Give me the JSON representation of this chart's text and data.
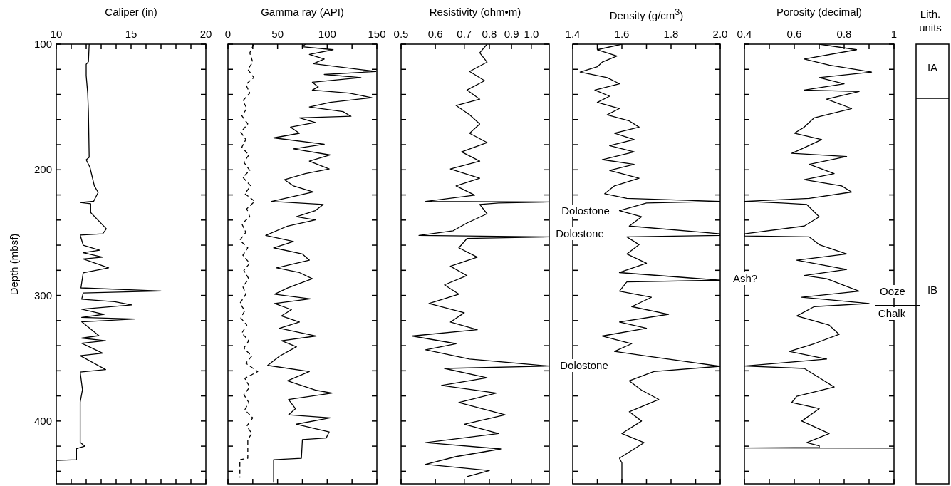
{
  "chart_data": [
    {
      "type": "line",
      "orientation": "horizontal",
      "xlabel": "Caliper (in)",
      "ylabel": "Depth (mbsf)",
      "xlim": [
        10,
        20
      ],
      "ylim": [
        450,
        100
      ],
      "xticks": [
        10,
        {
          "value": 11,
          "label": null
        },
        {
          "value": 12,
          "label": null
        },
        {
          "value": 13,
          "label": null
        },
        {
          "value": 14,
          "label": null
        },
        15,
        {
          "value": 16,
          "label": null
        },
        {
          "value": 17,
          "label": null
        },
        {
          "value": 18,
          "label": null
        },
        {
          "value": 19,
          "label": null
        },
        20
      ],
      "yticks": [
        100,
        {
          "value": 120,
          "label": null
        },
        {
          "value": 140,
          "label": null
        },
        {
          "value": 160,
          "label": null
        },
        {
          "value": 180,
          "label": null
        },
        200,
        {
          "value": 220,
          "label": null
        },
        {
          "value": 240,
          "label": null
        },
        {
          "value": 260,
          "label": null
        },
        {
          "value": 280,
          "label": null
        },
        300,
        {
          "value": 320,
          "label": null
        },
        {
          "value": 340,
          "label": null
        },
        {
          "value": 360,
          "label": null
        },
        {
          "value": 380,
          "label": null
        },
        400,
        {
          "value": 420,
          "label": null
        },
        {
          "value": 440,
          "label": null
        }
      ],
      "series": [
        {
          "color": "#000000",
          "x": [
            100,
            114,
            116,
            125,
            139,
            154,
            190,
            192,
            198,
            213,
            218,
            225,
            226,
            227,
            234,
            247,
            251,
            252,
            260,
            264,
            266,
            269.5,
            271,
            278,
            282,
            294,
            296.5,
            298,
            303,
            305,
            307.6,
            311,
            315,
            317.5,
            318.7,
            321,
            332,
            334,
            336,
            338,
            346,
            348,
            359,
            361,
            375,
            385,
            417,
            420,
            422,
            430.8,
            431.3,
            449
          ],
          "values": [
            12.2,
            12.15,
            12.0,
            12.0,
            12.1,
            12.15,
            12.2,
            12.0,
            12.25,
            12.55,
            12.8,
            12.5,
            11.6,
            12.3,
            12.3,
            13.35,
            13.1,
            11.6,
            11.8,
            12.9,
            11.8,
            13.1,
            11.8,
            13.5,
            11.8,
            11.65,
            17.0,
            11.8,
            11.7,
            13.9,
            15.05,
            11.7,
            13.2,
            11.7,
            15.25,
            11.7,
            12.85,
            11.7,
            13.3,
            11.7,
            13.1,
            11.6,
            13.3,
            11.6,
            11.75,
            11.6,
            11.6,
            11.9,
            11.35,
            11.35,
            10.0,
            10.0
          ]
        }
      ]
    },
    {
      "type": "line",
      "orientation": "horizontal",
      "xlabel": "Gamma ray (API)",
      "xlim": [
        0,
        150
      ],
      "ylim": [
        450,
        100
      ],
      "tick_labels": "x",
      "xticks": [
        0,
        {
          "value": 25,
          "label": null
        },
        50,
        {
          "value": 75,
          "label": null
        },
        100,
        {
          "value": 125,
          "label": null
        },
        150
      ],
      "yticks": [
        100,
        {
          "value": 120,
          "label": null
        },
        {
          "value": 140,
          "label": null
        },
        {
          "value": 160,
          "label": null
        },
        {
          "value": 180,
          "label": null
        },
        200,
        {
          "value": 220,
          "label": null
        },
        {
          "value": 240,
          "label": null
        },
        {
          "value": 260,
          "label": null
        },
        {
          "value": 280,
          "label": null
        },
        300,
        {
          "value": 320,
          "label": null
        },
        {
          "value": 340,
          "label": null
        },
        {
          "value": 360,
          "label": null
        },
        {
          "value": 380,
          "label": null
        },
        400,
        {
          "value": 420,
          "label": null
        },
        {
          "value": 440,
          "label": null
        }
      ],
      "series": [
        {
          "color": "#000000",
          "x": [
            100,
            102,
            104.4,
            108.1,
            111.8,
            115.5,
            121.7,
            124.1,
            126.6,
            130.3,
            134,
            136.5,
            138.9,
            142.6,
            146.3,
            150,
            153.7,
            157.4,
            158.6,
            162.3,
            166,
            170.9,
            174.6,
            179.6,
            183.3,
            188.2,
            193.1,
            199.3,
            203,
            207.9,
            212.8,
            217.7,
            225.1,
            227.6,
            232.5,
            237.4,
            239.9,
            244.8,
            252.2,
            257.1,
            262.1,
            267,
            271.9,
            278.1,
            281.8,
            286.7,
            294.1,
            299,
            302.7,
            306.4,
            311.3,
            316.3,
            321.2,
            326.1,
            332.3,
            336,
            340.9,
            348.3,
            355.7,
            360.6,
            368,
            375.4,
            377.8,
            382.8,
            390.1,
            395.1,
            397.5,
            402.5,
            408.6,
            413.5,
            414.8,
            429.6,
            430.8,
            449
          ],
          "values": [
            78,
            75,
            106,
            82,
            97,
            86,
            149,
            97,
            134,
            85,
            91,
            85,
            122,
            145,
            103,
            82,
            116,
            124,
            72,
            88,
            63,
            72,
            46,
            97,
            66,
            103,
            82,
            102,
            78,
            57,
            66,
            86,
            44,
            96,
            88,
            69,
            88,
            60,
            38,
            66,
            46,
            75,
            82,
            49,
            72,
            85,
            60,
            47,
            83,
            47,
            64,
            54,
            72,
            52,
            89,
            54,
            69,
            52,
            40,
            82,
            60,
            88,
            105,
            61,
            68,
            61,
            103,
            69,
            102,
            99,
            75,
            74,
            46,
            46
          ]
        },
        {
          "color": "#000000",
          "line_style": "dashed",
          "x": [
            100,
            107,
            114.3,
            120,
            126.6,
            132,
            138.9,
            145,
            151.2,
            157,
            163.5,
            170,
            175.9,
            182,
            188.2,
            194,
            200.5,
            206,
            212.8,
            219,
            225.1,
            231,
            237.4,
            243,
            249.8,
            256,
            262.1,
            268,
            274.4,
            280,
            286.7,
            293,
            299,
            306.4,
            312,
            318,
            323.6,
            330,
            336,
            342,
            348.3,
            354,
            360.6,
            366,
            372.9,
            379,
            385.2,
            391,
            397.5,
            404,
            409.9,
            414.8,
            429.6,
            430.8,
            445
          ],
          "values": [
            26,
            22,
            25,
            20,
            26,
            18,
            22,
            15,
            19,
            14,
            20,
            13,
            18,
            14,
            21,
            16,
            22,
            15,
            23,
            17,
            27,
            19,
            22,
            14,
            18,
            12,
            20,
            15,
            22,
            16,
            21,
            15,
            18,
            12,
            17,
            13,
            19,
            14,
            21,
            16,
            24,
            18,
            30,
            17,
            22,
            16,
            21,
            17,
            25,
            19,
            24,
            20,
            20,
            12,
            12
          ]
        }
      ]
    },
    {
      "type": "line",
      "orientation": "horizontal",
      "xlabel": "Resistivity (ohm•m)",
      "xlim": [
        0.5,
        1.1
      ],
      "ylim": [
        450,
        100
      ],
      "log": "x",
      "tick_labels": "x",
      "xticks": [
        0.5,
        0.6,
        0.7,
        0.8,
        0.9,
        {
          "value": 1,
          "label": "1.0"
        }
      ],
      "yticks": [
        100,
        {
          "value": 120,
          "label": null
        },
        {
          "value": 140,
          "label": null
        },
        {
          "value": 160,
          "label": null
        },
        {
          "value": 180,
          "label": null
        },
        200,
        {
          "value": 220,
          "label": null
        },
        {
          "value": 240,
          "label": null
        },
        {
          "value": 260,
          "label": null
        },
        {
          "value": 280,
          "label": null
        },
        300,
        {
          "value": 320,
          "label": null
        },
        {
          "value": 340,
          "label": null
        },
        {
          "value": 360,
          "label": null
        },
        {
          "value": 380,
          "label": null
        },
        400,
        {
          "value": 420,
          "label": null
        },
        {
          "value": 440,
          "label": null
        }
      ],
      "series": [
        {
          "color": "#000000",
          "x": [
            100,
            106.9,
            114.3,
            121.7,
            129.1,
            136.5,
            143.8,
            148.8,
            156.2,
            163.5,
            170.9,
            178.3,
            185.7,
            193.1,
            199.3,
            206.7,
            212.8,
            220.2,
            225.1,
            225.6,
            226.4,
            227.6,
            235,
            242.4,
            248.5,
            252.2,
            253.4,
            254.7,
            262.1,
            269.5,
            276.8,
            284.2,
            291.6,
            299,
            306.4,
            313.8,
            321.2,
            327.3,
            332.3,
            338.4,
            343.3,
            350.7,
            356.2,
            358.1,
            365.5,
            371.7,
            377.8,
            385.2,
            395.1,
            402.5,
            409.9,
            417.2,
            422.2,
            428.3,
            434.5,
            439.4,
            444.3
          ],
          "values": [
            0.79,
            0.76,
            0.79,
            0.72,
            0.78,
            0.71,
            0.76,
            0.67,
            0.72,
            0.76,
            0.72,
            0.79,
            0.69,
            0.76,
            0.65,
            0.76,
            0.67,
            0.74,
            0.57,
            1.1,
            0.84,
            0.76,
            0.79,
            0.71,
            0.66,
            0.55,
            1.1,
            0.71,
            0.68,
            0.75,
            0.65,
            0.71,
            0.63,
            0.68,
            0.58,
            0.7,
            0.65,
            0.75,
            0.53,
            0.67,
            0.57,
            0.72,
            1.1,
            0.63,
            0.79,
            0.62,
            0.83,
            0.68,
            0.87,
            0.7,
            0.84,
            0.57,
            0.85,
            0.67,
            0.57,
            0.8,
            0.71
          ]
        }
      ]
    },
    {
      "type": "line",
      "orientation": "horizontal",
      "xlabel": "Density (g/cm$^{3}$)",
      "xlim": [
        1.4,
        2.0
      ],
      "ylim": [
        450,
        100
      ],
      "tick_labels": "x",
      "xticks": [
        1.4,
        {
          "value": 1.5,
          "label": null
        },
        1.6,
        {
          "value": 1.7,
          "label": null
        },
        1.8,
        {
          "value": 1.9,
          "label": null
        },
        {
          "value": 2,
          "label": "2.0"
        }
      ],
      "yticks": [
        100,
        {
          "value": 120,
          "label": null
        },
        {
          "value": 140,
          "label": null
        },
        {
          "value": 160,
          "label": null
        },
        {
          "value": 180,
          "label": null
        },
        200,
        {
          "value": 220,
          "label": null
        },
        {
          "value": 240,
          "label": null
        },
        {
          "value": 260,
          "label": null
        },
        {
          "value": 280,
          "label": null
        },
        300,
        {
          "value": 320,
          "label": null
        },
        {
          "value": 340,
          "label": null
        },
        {
          "value": 360,
          "label": null
        },
        {
          "value": 380,
          "label": null
        },
        400,
        {
          "value": 420,
          "label": null
        },
        {
          "value": 440,
          "label": null
        }
      ],
      "annotations": [
        "Dolostone",
        "Dolostone",
        "Dolostone"
      ],
      "series": [
        {
          "color": "#000000",
          "x": [
            100,
            104.4,
            109.4,
            114.3,
            118,
            122.2,
            126.6,
            131.5,
            136.5,
            141.4,
            146.3,
            151.2,
            156.2,
            161.1,
            166,
            170.9,
            175.9,
            180.8,
            185.7,
            191.9,
            195.6,
            200.5,
            206.7,
            212.8,
            219,
            222.7,
            225.1,
            226.4,
            232.5,
            237.4,
            244.8,
            251,
            252.2,
            253.4,
            259.6,
            267,
            274.4,
            281.8,
            287.9,
            289.2,
            296.6,
            301.5,
            308.9,
            315,
            321.2,
            326.1,
            332.3,
            338.4,
            344.6,
            348.3,
            356.4,
            360.6,
            368,
            375.4,
            382.8,
            392.6,
            400,
            409.9,
            417.2,
            424.6,
            429.6,
            433.3,
            449
          ],
          "values": [
            1.6,
            1.5,
            1.58,
            1.52,
            1.5,
            1.43,
            1.54,
            1.59,
            1.49,
            1.55,
            1.5,
            1.59,
            1.54,
            1.63,
            1.67,
            1.57,
            1.65,
            1.55,
            1.65,
            1.52,
            1.65,
            1.55,
            1.67,
            1.57,
            1.53,
            1.62,
            2.0,
            1.7,
            1.59,
            1.68,
            1.63,
            2.0,
            2.0,
            1.62,
            1.67,
            1.62,
            1.7,
            1.59,
            2.0,
            1.62,
            1.59,
            1.72,
            1.64,
            1.79,
            1.59,
            1.7,
            1.52,
            1.64,
            1.57,
            1.7,
            2.0,
            1.73,
            1.63,
            1.68,
            1.75,
            1.63,
            1.68,
            1.6,
            1.69,
            1.63,
            1.59,
            1.6,
            1.6
          ]
        }
      ]
    },
    {
      "type": "line",
      "orientation": "horizontal",
      "xlabel": "Porosity (decimal)",
      "xlim": [
        0.4,
        1
      ],
      "ylim": [
        450,
        100
      ],
      "tick_labels": "x",
      "xticks": [
        0.4,
        {
          "value": 0.5,
          "label": null
        },
        0.6,
        {
          "value": 0.7,
          "label": null
        },
        0.8,
        {
          "value": 0.9,
          "label": null
        },
        1
      ],
      "yticks": [
        100,
        {
          "value": 120,
          "label": null
        },
        {
          "value": 140,
          "label": null
        },
        {
          "value": 160,
          "label": null
        },
        {
          "value": 180,
          "label": null
        },
        200,
        {
          "value": 220,
          "label": null
        },
        {
          "value": 240,
          "label": null
        },
        {
          "value": 260,
          "label": null
        },
        {
          "value": 280,
          "label": null
        },
        300,
        {
          "value": 320,
          "label": null
        },
        {
          "value": 340,
          "label": null
        },
        {
          "value": 360,
          "label": null
        },
        {
          "value": 380,
          "label": null
        },
        400,
        {
          "value": 420,
          "label": null
        },
        {
          "value": 440,
          "label": null
        }
      ],
      "annotations": [
        "Ash?",
        "Ooze",
        "Chalk",
        "Lith. units",
        "IA",
        "IB"
      ],
      "ref_lines": [
        {
          "axis": "y",
          "value": 308
        }
      ],
      "series": [
        {
          "color": "#000000",
          "x": [
            100,
            104.4,
            111.8,
            116.7,
            122.2,
            126.6,
            131.5,
            136.5,
            137.7,
            143.8,
            151.2,
            158.6,
            166,
            170.9,
            175.9,
            183.3,
            186.9,
            189.4,
            195.6,
            203,
            207.9,
            212.8,
            217.7,
            222.7,
            225.1,
            226.4,
            227.6,
            237.4,
            244.8,
            251,
            252.7,
            253.4,
            259.6,
            267,
            271.9,
            279.3,
            284.2,
            286.7,
            296.6,
            301.5,
            306.4,
            308.9,
            316.3,
            323.6,
            331,
            338.4,
            344.6,
            350.7,
            356.2,
            358.1,
            365.5,
            372.9,
            380.3,
            385.2,
            390.1,
            400,
            409.9,
            417.2,
            419.7,
            421,
            421.4,
            421.6
          ],
          "values": [
            0.7,
            0.85,
            0.64,
            0.74,
            0.91,
            0.7,
            0.8,
            0.64,
            0.86,
            0.73,
            0.83,
            0.68,
            0.64,
            0.6,
            0.71,
            0.63,
            0.59,
            0.81,
            0.66,
            0.76,
            0.64,
            0.79,
            0.83,
            0.66,
            0.4,
            0.55,
            0.65,
            0.7,
            0.64,
            0.4,
            0.4,
            0.66,
            0.7,
            0.81,
            0.61,
            0.81,
            0.64,
            0.73,
            0.86,
            0.63,
            0.9,
            0.68,
            0.61,
            0.74,
            0.78,
            0.68,
            0.58,
            0.73,
            0.4,
            0.64,
            0.7,
            0.76,
            0.61,
            0.59,
            0.7,
            0.63,
            0.74,
            0.65,
            0.7,
            0.7,
            0.4,
            1.0
          ]
        }
      ]
    }
  ]
}
